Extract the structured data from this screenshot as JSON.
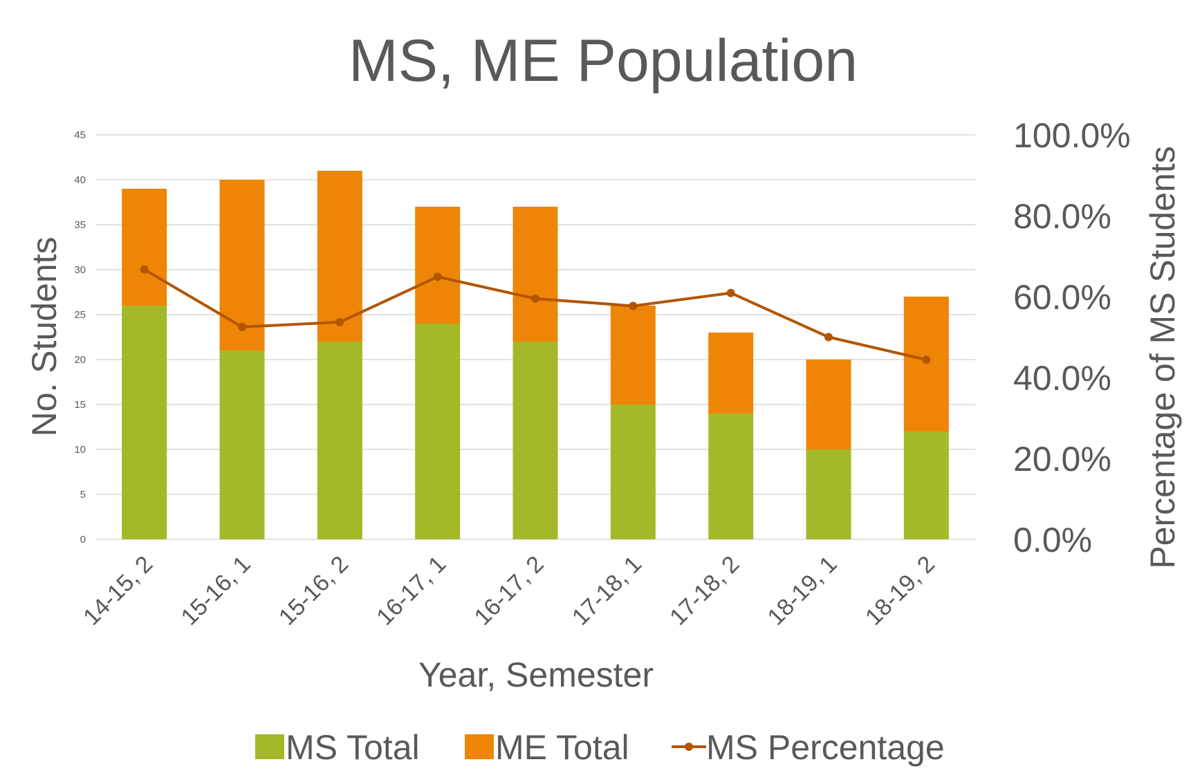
{
  "chart_data": {
    "type": "bar",
    "stacked": true,
    "title": "MS, ME Population",
    "xlabel": "Year, Semester",
    "ylabel": "No. Students",
    "y2label": "Percentage of MS Students",
    "categories": [
      "14-15, 2",
      "15-16, 1",
      "15-16, 2",
      "16-17, 1",
      "16-17, 2",
      "17-18, 1",
      "17-18, 2",
      "18-19, 1",
      "18-19, 2"
    ],
    "ylim": [
      0,
      45
    ],
    "yticks": [
      "0",
      "5",
      "10",
      "15",
      "20",
      "25",
      "30",
      "35",
      "40",
      "45"
    ],
    "y2lim": [
      0,
      1
    ],
    "y2ticks": [
      "0.0%",
      "20.0%",
      "40.0%",
      "60.0%",
      "80.0%",
      "100.0%"
    ],
    "grid": true,
    "legend_position": "bottom",
    "series": [
      {
        "name": "MS Total",
        "type": "bar",
        "axis": "left",
        "color": "#a5b829",
        "values": [
          26,
          21,
          22,
          24,
          22,
          15,
          14,
          10,
          12
        ]
      },
      {
        "name": "ME Total",
        "type": "bar",
        "axis": "left",
        "color": "#ef8506",
        "values": [
          13,
          19,
          19,
          13,
          15,
          11,
          9,
          10,
          15
        ]
      },
      {
        "name": "MS Percentage",
        "type": "line",
        "axis": "right",
        "color": "#b35500",
        "values": [
          0.667,
          0.525,
          0.537,
          0.649,
          0.595,
          0.577,
          0.609,
          0.5,
          0.444
        ]
      }
    ]
  }
}
